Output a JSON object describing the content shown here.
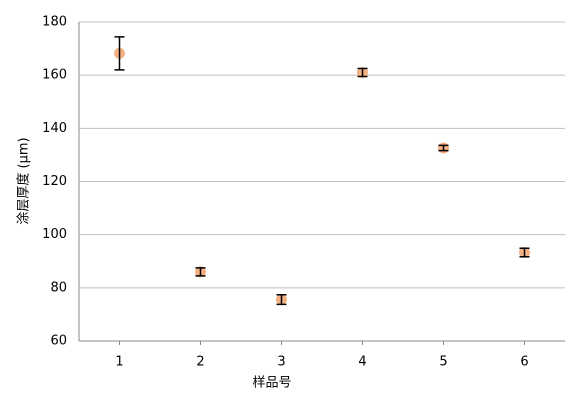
{
  "chart_data": {
    "type": "scatter",
    "x_label": "样品号",
    "y_label": "涂层厚度 (μm)",
    "x": [
      1,
      2,
      3,
      4,
      5,
      6
    ],
    "series": [
      {
        "color": "#f4b183",
        "values": [
          168.2,
          86,
          75.6,
          161,
          132.6,
          93.3
        ],
        "errors": [
          6.2,
          1.5,
          1.8,
          1.5,
          1,
          1.6
        ]
      }
    ],
    "xlim": [
      0.5,
      6.5
    ],
    "xticks": [
      1,
      2,
      3,
      4,
      5,
      6
    ],
    "ylim": [
      60,
      180
    ],
    "yticks": [
      60,
      80,
      100,
      120,
      140,
      160,
      180
    ],
    "grid": true
  }
}
